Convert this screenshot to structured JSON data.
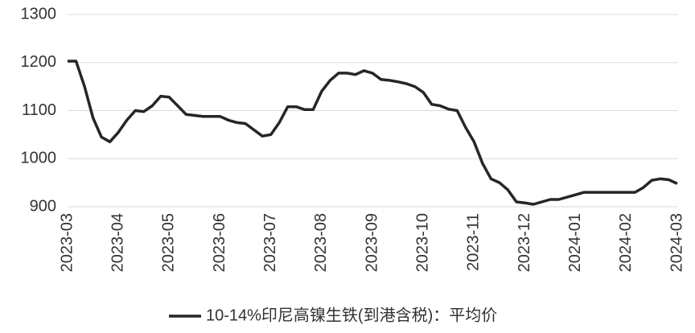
{
  "chart_data": {
    "type": "line",
    "categories": [
      "2023-03",
      null,
      null,
      null,
      null,
      null,
      "2023-04",
      null,
      null,
      null,
      null,
      null,
      "2023-05",
      null,
      null,
      null,
      null,
      null,
      "2023-06",
      null,
      null,
      null,
      null,
      null,
      "2023-07",
      null,
      null,
      null,
      null,
      null,
      "2023-08",
      null,
      null,
      null,
      null,
      null,
      "2023-09",
      null,
      null,
      null,
      null,
      null,
      "2023-10",
      null,
      null,
      null,
      null,
      null,
      "2023-11",
      null,
      null,
      null,
      null,
      null,
      "2023-12",
      null,
      null,
      null,
      null,
      null,
      "2024-01",
      null,
      null,
      null,
      null,
      null,
      "2024-02",
      null,
      null,
      null,
      null,
      null,
      "2024-03"
    ],
    "series": [
      {
        "name": "10-14%印尼高镍生铁(到港含税)：平均价",
        "color": "#262626",
        "values": [
          1203,
          1203,
          1150,
          1085,
          1045,
          1035,
          1055,
          1080,
          1100,
          1098,
          1110,
          1130,
          1128,
          1110,
          1092,
          1090,
          1088,
          1088,
          1088,
          1080,
          1075,
          1073,
          1060,
          1047,
          1050,
          1075,
          1108,
          1108,
          1102,
          1102,
          1140,
          1163,
          1178,
          1178,
          1175,
          1183,
          1178,
          1165,
          1163,
          1160,
          1156,
          1150,
          1138,
          1113,
          1110,
          1103,
          1100,
          1065,
          1035,
          990,
          958,
          950,
          935,
          910,
          908,
          905,
          910,
          915,
          915,
          920,
          925,
          930,
          930,
          930,
          930,
          930,
          930,
          930,
          940,
          955,
          958,
          956,
          948
        ]
      }
    ],
    "ylim": [
      900,
      1300
    ],
    "yticks": [
      900,
      1000,
      1100,
      1200,
      1300
    ],
    "grid": true,
    "legend": "bottom"
  }
}
